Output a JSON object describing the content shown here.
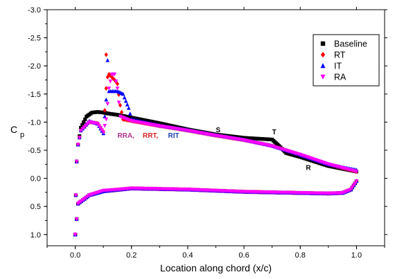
{
  "chart_data": {
    "type": "scatter",
    "xlabel": "Location along chord (x/c)",
    "ylabel_main": "C",
    "ylabel_sub": "p",
    "xlim": [
      -0.1,
      1.1
    ],
    "ylim": [
      1.2,
      -3.0
    ],
    "y_inverted": true,
    "x_ticks": [
      0.0,
      0.2,
      0.4,
      0.6,
      0.8,
      1.0
    ],
    "x_tick_labels": [
      "0.0",
      "0.2",
      "0.4",
      "0.6",
      "0.8",
      "1.0"
    ],
    "y_ticks": [
      -3.0,
      -2.5,
      -2.0,
      -1.5,
      -1.0,
      -0.5,
      0.0,
      0.5,
      1.0
    ],
    "y_tick_labels": [
      "-3.0",
      "-2.5",
      "-2.0",
      "-1.5",
      "-1.0",
      "-0.5",
      "0.0",
      "0.5",
      "1.0"
    ],
    "grid": false,
    "legend_position": "top-right",
    "series": [
      {
        "name": "Baseline",
        "color": "#000000",
        "marker": "square",
        "upper": [
          [
            0.0,
            1.0
          ],
          [
            0.002,
            0.3
          ],
          [
            0.005,
            -0.3
          ],
          [
            0.01,
            -0.6
          ],
          [
            0.02,
            -0.9
          ],
          [
            0.04,
            -1.1
          ],
          [
            0.06,
            -1.17
          ],
          [
            0.08,
            -1.18
          ],
          [
            0.1,
            -1.17
          ],
          [
            0.12,
            -1.15
          ],
          [
            0.15,
            -1.13
          ],
          [
            0.2,
            -1.08
          ],
          [
            0.3,
            -0.98
          ],
          [
            0.4,
            -0.87
          ],
          [
            0.5,
            -0.78
          ],
          [
            0.6,
            -0.72
          ],
          [
            0.7,
            -0.69
          ],
          [
            0.72,
            -0.6
          ],
          [
            0.75,
            -0.45
          ],
          [
            0.8,
            -0.38
          ],
          [
            0.9,
            -0.22
          ],
          [
            1.0,
            -0.12
          ]
        ],
        "lower": [
          [
            0.0,
            1.0
          ],
          [
            0.01,
            0.45
          ],
          [
            0.05,
            0.3
          ],
          [
            0.1,
            0.23
          ],
          [
            0.2,
            0.18
          ],
          [
            0.3,
            0.19
          ],
          [
            0.4,
            0.2
          ],
          [
            0.5,
            0.22
          ],
          [
            0.6,
            0.24
          ],
          [
            0.7,
            0.25
          ],
          [
            0.8,
            0.26
          ],
          [
            0.9,
            0.27
          ],
          [
            0.95,
            0.26
          ],
          [
            0.98,
            0.2
          ],
          [
            1.0,
            0.05
          ]
        ]
      },
      {
        "name": "RT",
        "color": "#ff0000",
        "marker": "diamond",
        "upper": [
          [
            0.0,
            1.0
          ],
          [
            0.002,
            0.3
          ],
          [
            0.005,
            -0.3
          ],
          [
            0.01,
            -0.6
          ],
          [
            0.02,
            -0.85
          ],
          [
            0.05,
            -1.0
          ],
          [
            0.08,
            -0.98
          ],
          [
            0.1,
            -0.82
          ],
          [
            0.11,
            -1.6
          ],
          [
            0.11,
            -2.2
          ],
          [
            0.115,
            -1.8
          ],
          [
            0.12,
            -1.85
          ],
          [
            0.13,
            -1.8
          ],
          [
            0.14,
            -1.75
          ],
          [
            0.15,
            -1.68
          ],
          [
            0.16,
            -1.3
          ],
          [
            0.17,
            -1.05
          ],
          [
            0.2,
            -1.02
          ],
          [
            0.3,
            -0.93
          ],
          [
            0.4,
            -0.85
          ],
          [
            0.5,
            -0.76
          ],
          [
            0.6,
            -0.68
          ],
          [
            0.7,
            -0.58
          ],
          [
            0.8,
            -0.42
          ],
          [
            0.9,
            -0.25
          ],
          [
            1.0,
            -0.12
          ]
        ],
        "lower": [
          [
            0.0,
            1.0
          ],
          [
            0.01,
            0.45
          ],
          [
            0.05,
            0.3
          ],
          [
            0.1,
            0.23
          ],
          [
            0.2,
            0.18
          ],
          [
            0.3,
            0.19
          ],
          [
            0.4,
            0.2
          ],
          [
            0.5,
            0.22
          ],
          [
            0.6,
            0.24
          ],
          [
            0.7,
            0.25
          ],
          [
            0.8,
            0.26
          ],
          [
            0.9,
            0.27
          ],
          [
            0.95,
            0.26
          ],
          [
            0.98,
            0.2
          ],
          [
            1.0,
            0.05
          ]
        ]
      },
      {
        "name": "IT",
        "color": "#0000ff",
        "marker": "triangle",
        "upper": [
          [
            0.0,
            1.0
          ],
          [
            0.002,
            0.3
          ],
          [
            0.005,
            -0.3
          ],
          [
            0.01,
            -0.6
          ],
          [
            0.02,
            -0.85
          ],
          [
            0.05,
            -1.02
          ],
          [
            0.08,
            -0.97
          ],
          [
            0.1,
            -0.8
          ],
          [
            0.11,
            -1.4
          ],
          [
            0.115,
            -2.1
          ],
          [
            0.12,
            -1.55
          ],
          [
            0.15,
            -1.55
          ],
          [
            0.17,
            -1.5
          ],
          [
            0.19,
            -1.25
          ],
          [
            0.2,
            -1.05
          ],
          [
            0.3,
            -0.94
          ],
          [
            0.4,
            -0.86
          ],
          [
            0.5,
            -0.77
          ],
          [
            0.6,
            -0.69
          ],
          [
            0.7,
            -0.58
          ],
          [
            0.8,
            -0.42
          ],
          [
            0.9,
            -0.25
          ],
          [
            1.0,
            -0.15
          ]
        ],
        "lower": [
          [
            0.0,
            1.0
          ],
          [
            0.01,
            0.45
          ],
          [
            0.05,
            0.3
          ],
          [
            0.1,
            0.23
          ],
          [
            0.2,
            0.18
          ],
          [
            0.3,
            0.19
          ],
          [
            0.4,
            0.2
          ],
          [
            0.5,
            0.22
          ],
          [
            0.6,
            0.24
          ],
          [
            0.7,
            0.25
          ],
          [
            0.8,
            0.26
          ],
          [
            0.9,
            0.27
          ],
          [
            0.95,
            0.26
          ],
          [
            0.98,
            0.2
          ],
          [
            1.0,
            0.05
          ]
        ]
      },
      {
        "name": "RA",
        "color": "#ff00ff",
        "marker": "triangle-down",
        "upper": [
          [
            0.0,
            1.0
          ],
          [
            0.002,
            0.3
          ],
          [
            0.005,
            -0.3
          ],
          [
            0.01,
            -0.6
          ],
          [
            0.02,
            -0.85
          ],
          [
            0.05,
            -1.0
          ],
          [
            0.08,
            -0.97
          ],
          [
            0.1,
            -0.82
          ],
          [
            0.11,
            -1.05
          ],
          [
            0.12,
            -1.6
          ],
          [
            0.13,
            -1.85
          ],
          [
            0.14,
            -1.85
          ],
          [
            0.15,
            -1.6
          ],
          [
            0.16,
            -1.1
          ],
          [
            0.2,
            -1.02
          ],
          [
            0.3,
            -0.93
          ],
          [
            0.4,
            -0.85
          ],
          [
            0.5,
            -0.76
          ],
          [
            0.6,
            -0.68
          ],
          [
            0.7,
            -0.57
          ],
          [
            0.8,
            -0.42
          ],
          [
            0.9,
            -0.25
          ],
          [
            1.0,
            -0.12
          ]
        ],
        "lower": [
          [
            0.0,
            1.0
          ],
          [
            0.01,
            0.45
          ],
          [
            0.05,
            0.3
          ],
          [
            0.1,
            0.22
          ],
          [
            0.2,
            0.18
          ],
          [
            0.3,
            0.19
          ],
          [
            0.4,
            0.2
          ],
          [
            0.5,
            0.22
          ],
          [
            0.6,
            0.24
          ],
          [
            0.7,
            0.25
          ],
          [
            0.8,
            0.26
          ],
          [
            0.9,
            0.27
          ],
          [
            0.95,
            0.26
          ],
          [
            0.98,
            0.2
          ],
          [
            1.0,
            0.05
          ]
        ]
      }
    ],
    "annotations": [
      {
        "text": "S",
        "x": 0.5,
        "y": -0.82,
        "color": "#000000"
      },
      {
        "text": "T",
        "x": 0.7,
        "y": -0.78,
        "color": "#000000"
      },
      {
        "text": "R",
        "x": 0.82,
        "y": -0.15,
        "color": "#000000"
      },
      {
        "text": "RRA,",
        "x": 0.15,
        "y": -0.72,
        "color": "#b0308a"
      },
      {
        "text": "RRT,",
        "x": 0.24,
        "y": -0.72,
        "color": "#d81f1f"
      },
      {
        "text": "RIT",
        "x": 0.33,
        "y": -0.72,
        "color": "#1a3fb5"
      }
    ]
  }
}
